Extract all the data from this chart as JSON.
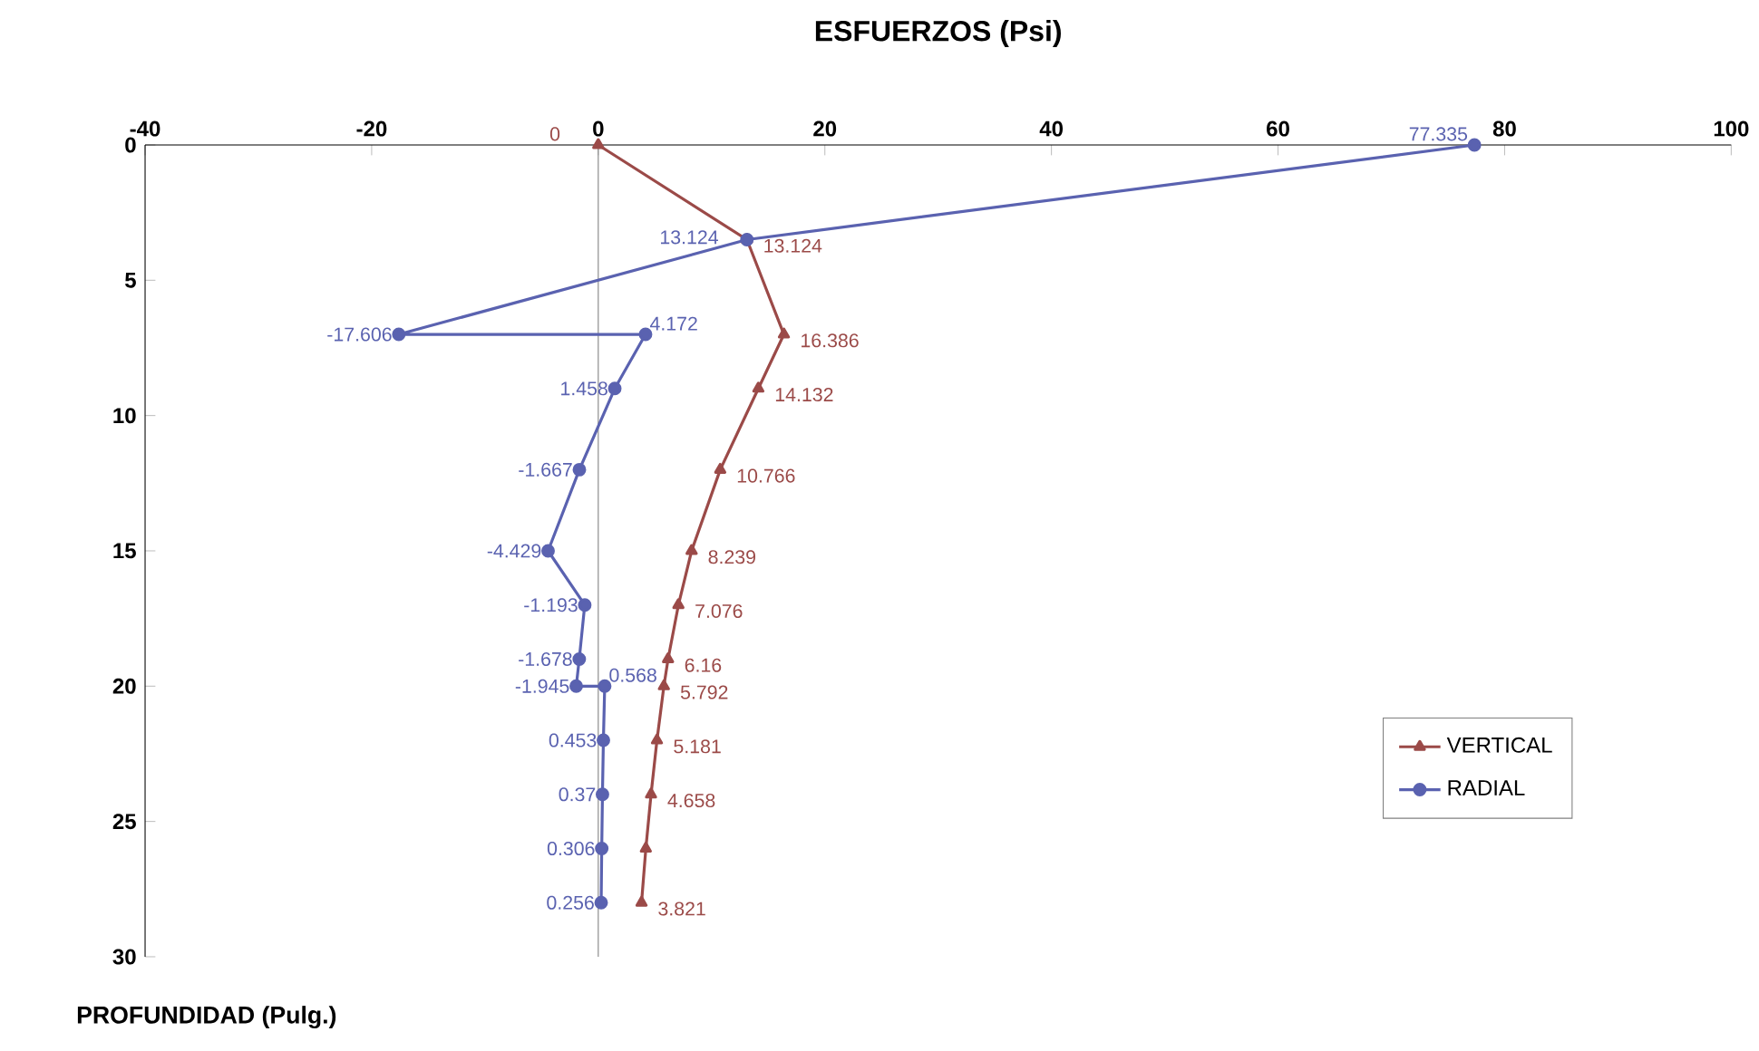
{
  "chart_data": {
    "type": "line",
    "orientation": "horizontal",
    "xlabel": "ESFUERZOS (Psi)",
    "ylabel": "PROFUNDIDAD (Pulg.)",
    "xlim": [
      -40,
      100
    ],
    "xticks": [
      -40,
      -20,
      0,
      20,
      40,
      60,
      80,
      100
    ],
    "ylim": [
      30,
      0
    ],
    "yticks": [
      0,
      5,
      10,
      15,
      20,
      25,
      30
    ],
    "grid": false,
    "legend": "bottom right",
    "ref_lines": [
      {
        "axis": "x",
        "value": 0,
        "color": "#808080"
      }
    ],
    "series": [
      {
        "name": "VERTICAL",
        "color": "#9b4a48",
        "marker": "triangle",
        "x": [
          0,
          3.5,
          7,
          9,
          12,
          15,
          17,
          19,
          20,
          22,
          24,
          26,
          28
        ],
        "values": [
          0,
          13.124,
          16.386,
          14.132,
          10.766,
          8.239,
          7.076,
          6.16,
          5.792,
          5.181,
          4.658,
          4.2,
          3.821
        ],
        "value_labels": [
          "0",
          "13.124",
          "16.386",
          "14.132",
          "10.766",
          "8.239",
          "7.076",
          "6.16",
          "5.792",
          "5.181",
          "4.658",
          null,
          "3.821"
        ]
      },
      {
        "name": "RADIAL",
        "color": "#5a62b0",
        "marker": "circle",
        "x": [
          0,
          3.5,
          7,
          7,
          9,
          12,
          15,
          17,
          19,
          20,
          20,
          22,
          24,
          26,
          28
        ],
        "values": [
          77.335,
          13.124,
          -17.606,
          4.172,
          1.458,
          -1.667,
          -4.429,
          -1.193,
          -1.678,
          -1.945,
          0.568,
          0.453,
          0.37,
          0.306,
          0.256
        ],
        "value_labels": [
          "77.335",
          "13.124",
          "-17.606",
          "4.172",
          "1.458",
          "-1.667",
          "-4.429",
          "-1.193",
          "-1.678",
          "-1.945",
          "0.568",
          "0.453",
          "0.37",
          "0.306",
          "0.256"
        ]
      }
    ]
  }
}
